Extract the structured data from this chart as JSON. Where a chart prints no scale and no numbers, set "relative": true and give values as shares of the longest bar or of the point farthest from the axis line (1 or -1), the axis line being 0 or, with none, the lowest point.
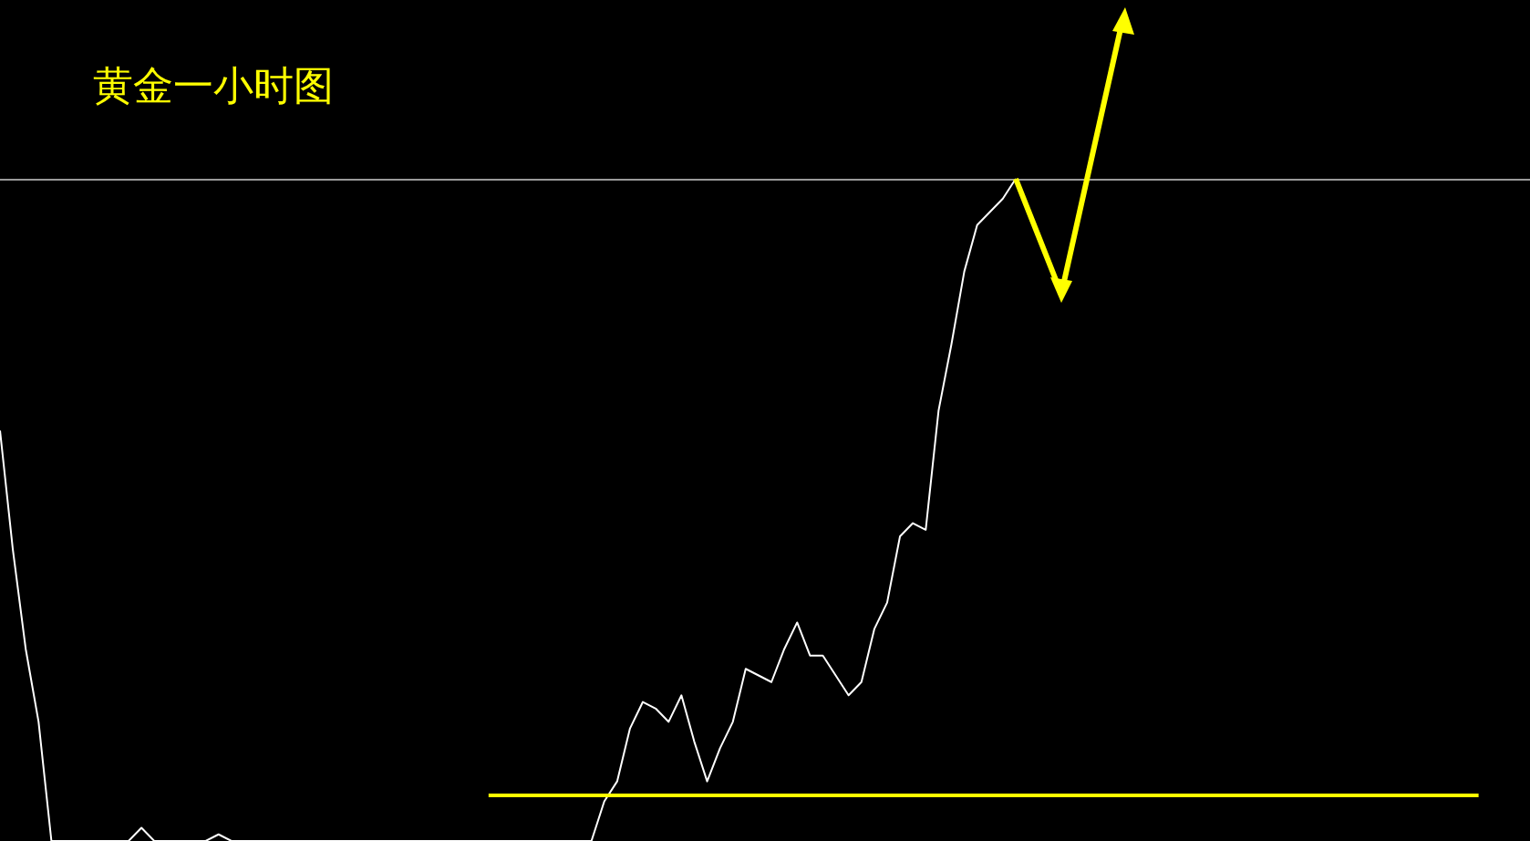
{
  "chart_data": {
    "type": "line",
    "title": "黄金一小时图",
    "relative": true,
    "categories": [
      null,
      null,
      null,
      null,
      null,
      null,
      null,
      null,
      null,
      null,
      null,
      null,
      null,
      null,
      null,
      null,
      null,
      null,
      null,
      null,
      null,
      null,
      null,
      null,
      null,
      null,
      null,
      null,
      null,
      null,
      null,
      null,
      null,
      null,
      null,
      null,
      null,
      null,
      null,
      null,
      null,
      null,
      null,
      null,
      null,
      null,
      null,
      null,
      null,
      null,
      null,
      null,
      null,
      null,
      null,
      null,
      null,
      null,
      null,
      null,
      null,
      null,
      null,
      null,
      null,
      null,
      null,
      null,
      null,
      null,
      null,
      null,
      null,
      null,
      null,
      null,
      null,
      null,
      null,
      null,
      null,
      null,
      null,
      null,
      null,
      null,
      null,
      null,
      null,
      null,
      null,
      null,
      null,
      null,
      null,
      null,
      null,
      null,
      null,
      null,
      null,
      null,
      null,
      null,
      null,
      null,
      null,
      null,
      null,
      null,
      null,
      null,
      null,
      null,
      null,
      null,
      null,
      null,
      null,
      null
    ],
    "series": [
      {
        "color": "#ffffff",
        "values": [
          0.62,
          0.44,
          0.29,
          0.18,
          0,
          0,
          0,
          0,
          0,
          0,
          0,
          0.02,
          0,
          0,
          0,
          0,
          0,
          0.01,
          0,
          0,
          0,
          0,
          0,
          0,
          0,
          0,
          0,
          0,
          0,
          0,
          0,
          0,
          0,
          0,
          0,
          0,
          0,
          0,
          0,
          0,
          0,
          0,
          0,
          0,
          0,
          0,
          0,
          0.06,
          0.09,
          0.17,
          0.21,
          0.2,
          0.18,
          0.22,
          0.15,
          0.09,
          0.14,
          0.18,
          0.26,
          0.25,
          0.24,
          0.29,
          0.33,
          0.28,
          0.28,
          0.25,
          0.22,
          0.24,
          0.32,
          0.36,
          0.46,
          0.48,
          0.47,
          0.65,
          0.75,
          0.86,
          0.93,
          0.95,
          0.97,
          1,
          null,
          null,
          null,
          null,
          null,
          null,
          null,
          null,
          null,
          null,
          null,
          null,
          null,
          null,
          null,
          null,
          null,
          null,
          null,
          null,
          null,
          null,
          null,
          null,
          null,
          null,
          null,
          null,
          null,
          null,
          null,
          null,
          null,
          null,
          null,
          null,
          null,
          null,
          null,
          null
        ]
      }
    ],
    "ref_lines": [
      {
        "axis": "y",
        "value": 1,
        "color": "#9a9a9a"
      },
      {
        "axis": "y",
        "value": 0.07,
        "color": "#ffff00"
      }
    ]
  }
}
